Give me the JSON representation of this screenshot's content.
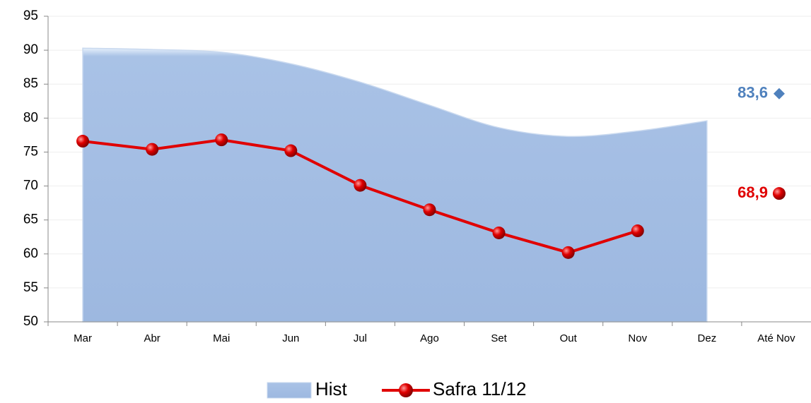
{
  "chart_data": {
    "type": "line",
    "categories": [
      "Mar",
      "Abr",
      "Mai",
      "Jun",
      "Jul",
      "Ago",
      "Set",
      "Out",
      "Nov",
      "Dez",
      "Até Nov"
    ],
    "series": [
      {
        "name": "Hist",
        "kind": "area",
        "color": "#a3bde3",
        "values": [
          90.3,
          90.1,
          89.7,
          88.0,
          85.3,
          81.9,
          78.6,
          77.3,
          78.1,
          79.6,
          83.6
        ],
        "value_labels": [
          null,
          null,
          null,
          null,
          null,
          null,
          null,
          null,
          null,
          null,
          "83,6"
        ],
        "label_color": "#4f81bd"
      },
      {
        "name": "Safra 11/12",
        "kind": "line",
        "color": "#e00000",
        "values": [
          76.6,
          75.4,
          76.8,
          75.2,
          70.1,
          66.5,
          63.1,
          60.2,
          63.4,
          null,
          68.9
        ],
        "value_labels": [
          null,
          null,
          null,
          null,
          null,
          null,
          null,
          null,
          null,
          null,
          "68,9"
        ],
        "label_color": "#e00000"
      }
    ],
    "standalone_last": true,
    "ylim": [
      50,
      95
    ],
    "yticks": [
      50,
      55,
      60,
      65,
      70,
      75,
      80,
      85,
      90,
      95
    ],
    "grid": true
  }
}
